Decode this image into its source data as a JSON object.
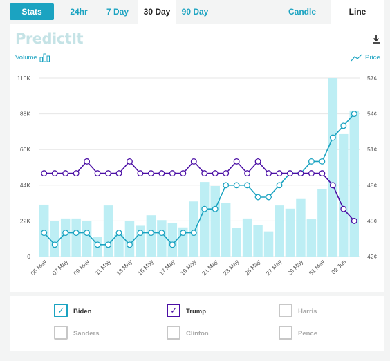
{
  "tabs": {
    "stats": "Stats",
    "r24": "24hr",
    "r7": "7 Day",
    "r30": "30 Day",
    "r90": "90 Day",
    "candle": "Candle",
    "line": "Line"
  },
  "logo": "PredictIt",
  "legend_labels": {
    "volume": "Volume",
    "price": "Price"
  },
  "colors": {
    "accent": "#1ba3c1",
    "bar": "#bdeef4",
    "biden": "#1ba3c1",
    "trump": "#4b0fa5"
  },
  "candidates": [
    {
      "name": "Biden",
      "checked": true,
      "color": "#1ba3c1"
    },
    {
      "name": "Trump",
      "checked": true,
      "color": "#4b0fa5"
    },
    {
      "name": "Harris",
      "checked": false
    },
    {
      "name": "Sanders",
      "checked": false
    },
    {
      "name": "Clinton",
      "checked": false
    },
    {
      "name": "Pence",
      "checked": false
    }
  ],
  "chart_data": {
    "type": "bar+line",
    "x": [
      "05 May",
      "06 May",
      "07 May",
      "08 May",
      "09 May",
      "10 May",
      "11 May",
      "12 May",
      "13 May",
      "14 May",
      "15 May",
      "16 May",
      "17 May",
      "18 May",
      "19 May",
      "20 May",
      "21 May",
      "22 May",
      "23 May",
      "24 May",
      "25 May",
      "26 May",
      "27 May",
      "28 May",
      "29 May",
      "30 May",
      "31 May",
      "01 Jun",
      "02 Jun",
      "03 Jun"
    ],
    "x_tick_labels": [
      "05 May",
      "07 May",
      "09 May",
      "11 May",
      "13 May",
      "15 May",
      "17 May",
      "19 May",
      "21 May",
      "23 May",
      "25 May",
      "27 May",
      "29 May",
      "31 May",
      "02 Jun"
    ],
    "volume": [
      32000,
      22000,
      23500,
      23500,
      22000,
      12000,
      31500,
      13500,
      22000,
      19000,
      25500,
      22500,
      20500,
      18000,
      34000,
      46000,
      43500,
      33000,
      17500,
      23500,
      19500,
      15500,
      31500,
      29500,
      35500,
      23000,
      41500,
      110000,
      75500,
      90000
    ],
    "price_series": [
      {
        "name": "Biden",
        "values": [
          44,
          43,
          44,
          44,
          44,
          43,
          43,
          44,
          43,
          44,
          44,
          44,
          43,
          44,
          44,
          46,
          46,
          48,
          48,
          48,
          47,
          47,
          48,
          49,
          49,
          50,
          50,
          52,
          53,
          54
        ]
      },
      {
        "name": "Trump",
        "values": [
          49,
          49,
          49,
          49,
          50,
          49,
          49,
          49,
          50,
          49,
          49,
          49,
          49,
          49,
          50,
          49,
          49,
          49,
          50,
          49,
          50,
          49,
          49,
          49,
          49,
          49,
          49,
          48,
          46,
          45
        ]
      }
    ],
    "y_left_ticks": [
      "0",
      "22K",
      "44K",
      "66K",
      "88K",
      "110K"
    ],
    "y_left_range": [
      0,
      110000
    ],
    "y_right_ticks": [
      "42¢",
      "45¢",
      "48¢",
      "51¢",
      "54¢",
      "57¢"
    ],
    "y_right_range": [
      42,
      57
    ],
    "grid": true
  }
}
